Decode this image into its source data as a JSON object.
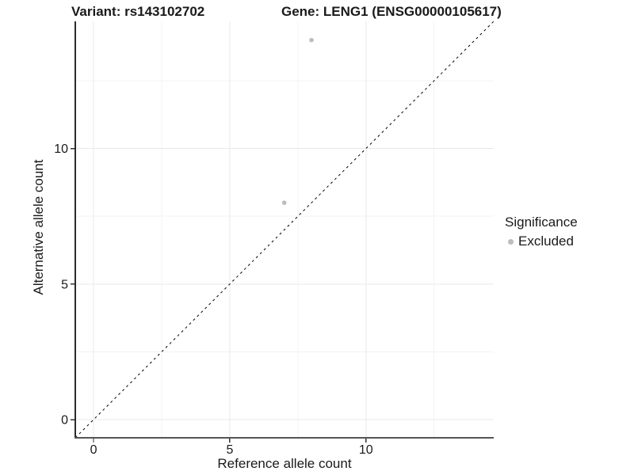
{
  "figure": {
    "title_variant": "Variant: rs143102702",
    "title_gene": "Gene: LENG1 (ENSG00000105617)"
  },
  "chart_data": {
    "type": "scatter",
    "title": "Variant: rs143102702   Gene: LENG1 (ENSG00000105617)",
    "xlabel": "Reference allele count",
    "ylabel": "Alternative allele count",
    "xlim": [
      -0.67,
      14.69
    ],
    "ylim": [
      -0.67,
      14.69
    ],
    "x_ticks": {
      "values": [
        0,
        5,
        10
      ],
      "labels": [
        "0",
        "5",
        "10"
      ]
    },
    "y_ticks": {
      "values": [
        0,
        5,
        10
      ],
      "labels": [
        "0",
        "5",
        "10"
      ]
    },
    "minor_tick_values": [
      2.5,
      7.5,
      12.5
    ],
    "grid": {
      "major": true,
      "minor": true,
      "major_color": "#e8e8e8",
      "minor_color": "#f3f3f3"
    },
    "series": [
      {
        "name": "Excluded",
        "marker": "circle",
        "color": "#bdbdbd",
        "points": [
          {
            "x": 7,
            "y": 8
          },
          {
            "x": 8,
            "y": 14
          }
        ]
      }
    ],
    "reference_line": {
      "kind": "identity",
      "equation": "y = x",
      "style": "dashed",
      "color": "#000000"
    },
    "legend": {
      "title": "Significance",
      "position": "right",
      "entries": [
        {
          "label": "Excluded",
          "marker_color": "#bdbdbd"
        }
      ]
    }
  },
  "style_colors": {
    "axis_line_left": "#2a2a2a",
    "axis_line_bottom": "#555555",
    "tick_color": "#333333",
    "text_color": "#1a1a1a",
    "point_color": "#bdbdbd"
  }
}
